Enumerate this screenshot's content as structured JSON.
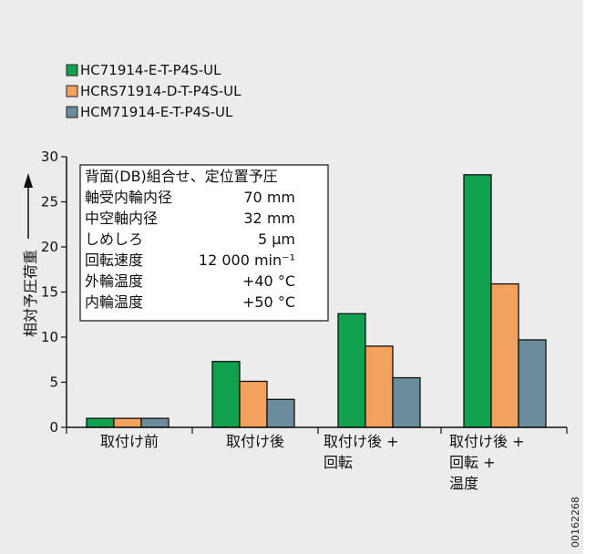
{
  "chart_data": {
    "type": "bar",
    "categories": [
      [
        "取付け前"
      ],
      [
        "取付け後"
      ],
      [
        "取付け後 +",
        "回転"
      ],
      [
        "取付け後 +",
        "回転 +",
        "温度"
      ]
    ],
    "series": [
      {
        "name": "HC71914-E-T-P4S-UL",
        "color": "#11a04e",
        "values": [
          1,
          7.3,
          12.6,
          28
        ]
      },
      {
        "name": "HCRS71914-D-T-P4S-UL",
        "color": "#f2a25c",
        "values": [
          1,
          5.1,
          9,
          15.9
        ]
      },
      {
        "name": "HCM71914-E-T-P4S-UL",
        "color": "#6b8c9b",
        "values": [
          1,
          3.1,
          5.5,
          9.7
        ]
      }
    ],
    "ylabel": "相対予圧荷重",
    "ylim": [
      0,
      30
    ],
    "yticks": [
      0,
      5,
      10,
      15,
      20,
      25,
      30
    ],
    "legend_position": "top-left",
    "grid": false,
    "info_box": {
      "title": "背面(DB)組合せ、定位置予圧",
      "rows": [
        {
          "label": "軸受内輪内径",
          "value": "70 mm"
        },
        {
          "label": "中空軸内径",
          "value": "32 mm"
        },
        {
          "label": "しめしろ",
          "value": "5 µm"
        },
        {
          "label": "回転速度",
          "value": "12 000 min⁻¹"
        },
        {
          "label": "外輪温度",
          "value": "+40 °C"
        },
        {
          "label": "内輪温度",
          "value": "+50 °C"
        }
      ]
    }
  },
  "figure_id": "00162268"
}
